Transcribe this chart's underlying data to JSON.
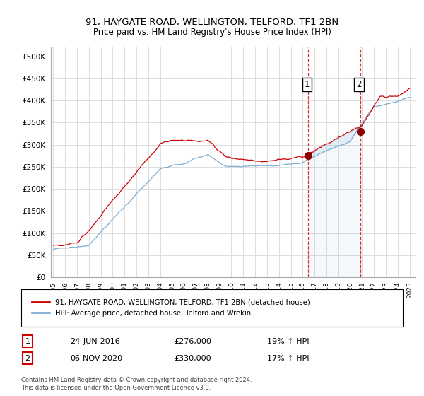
{
  "title": "91, HAYGATE ROAD, WELLINGTON, TELFORD, TF1 2BN",
  "subtitle": "Price paid vs. HM Land Registry's House Price Index (HPI)",
  "legend_label_red": "91, HAYGATE ROAD, WELLINGTON, TELFORD, TF1 2BN (detached house)",
  "legend_label_blue": "HPI: Average price, detached house, Telford and Wrekin",
  "annotation1_label": "1",
  "annotation1_date": "24-JUN-2016",
  "annotation1_price": "£276,000",
  "annotation1_hpi": "19% ↑ HPI",
  "annotation2_label": "2",
  "annotation2_date": "06-NOV-2020",
  "annotation2_price": "£330,000",
  "annotation2_hpi": "17% ↑ HPI",
  "footnote": "Contains HM Land Registry data © Crown copyright and database right 2024.\nThis data is licensed under the Open Government Licence v3.0.",
  "ylim": [
    0,
    520000
  ],
  "yticks": [
    0,
    50000,
    100000,
    150000,
    200000,
    250000,
    300000,
    350000,
    400000,
    450000,
    500000
  ],
  "color_red": "#cc0000",
  "color_blue": "#7dadd4",
  "background_color": "#ffffff",
  "grid_color": "#dddddd",
  "sale1_year": 2016.48,
  "sale1_price": 276000,
  "sale2_year": 2020.84,
  "sale2_price": 330000
}
